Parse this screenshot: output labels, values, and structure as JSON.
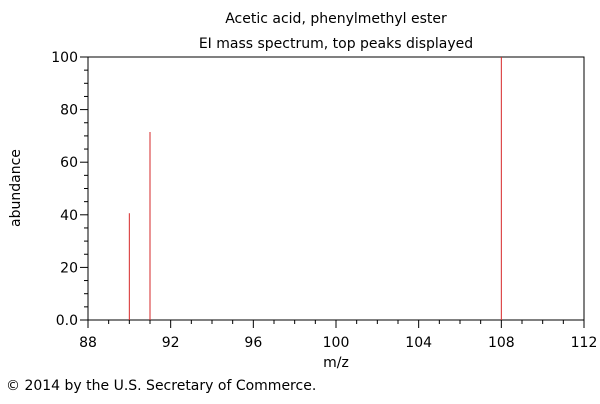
{
  "chart_data": {
    "type": "bar",
    "title": "Acetic acid, phenylmethyl ester",
    "subtitle": "EI mass spectrum, top peaks displayed",
    "xlabel": "m/z",
    "ylabel": "abundance",
    "xlim": [
      88,
      112
    ],
    "ylim": [
      0,
      100
    ],
    "x_ticks": [
      "88",
      "92",
      "96",
      "100",
      "104",
      "108",
      "112"
    ],
    "y_ticks": [
      "0.0",
      "20",
      "40",
      "60",
      "80",
      "100"
    ],
    "grid": false,
    "peaks": [
      {
        "x": 90,
        "y": 40.6
      },
      {
        "x": 91,
        "y": 71.5
      },
      {
        "x": 108,
        "y": 100
      }
    ],
    "peak_color": "#d62728"
  },
  "footer": {
    "copyright": "© 2014 by the U.S. Secretary of Commerce."
  }
}
